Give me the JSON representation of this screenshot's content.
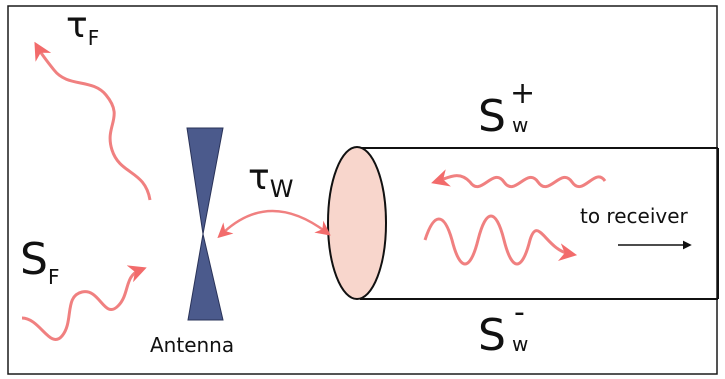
{
  "labels": {
    "tau_f": {
      "main": "τ",
      "sub": "F"
    },
    "tau_w": {
      "main": "τ",
      "sub": "W"
    },
    "s_f": {
      "main": "S",
      "sub": "F"
    },
    "s_w_plus": {
      "main": "S",
      "sup": "+",
      "sub": "w"
    },
    "s_w_minus": {
      "main": "S",
      "sup": "-",
      "sub": "w"
    },
    "antenna": "Antenna",
    "to_receiver": "to receiver"
  },
  "colors": {
    "wave": "#f08080",
    "wave_head": "#f26b6b",
    "antenna_fill": "#4b5a8c",
    "waveguide_end": "#f8d6cc",
    "frame": "#1a1a1a"
  },
  "icons": {
    "emitted_wave": "wavy-arrow-icon",
    "incident_wave": "wavy-arrow-icon",
    "coupling": "double-arrow-icon",
    "receiver_direction": "arrow-right-icon"
  }
}
